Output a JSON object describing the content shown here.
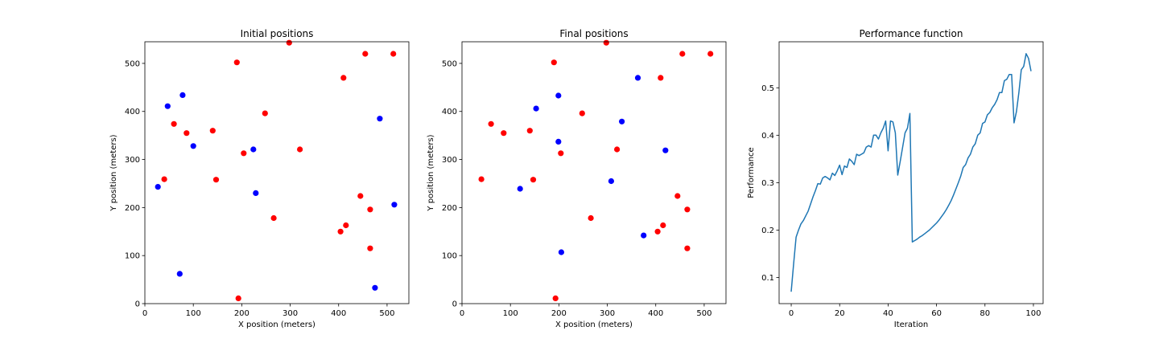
{
  "chart_data": [
    {
      "type": "scatter",
      "title": "Initial positions",
      "xlabel": "X position (meters)",
      "ylabel": "Y position (meters)",
      "xlim": [
        0,
        545
      ],
      "ylim": [
        0,
        545
      ],
      "xticks": [
        0,
        100,
        200,
        300,
        400,
        500
      ],
      "yticks": [
        0,
        100,
        200,
        300,
        400,
        500
      ],
      "series": [
        {
          "color": "#ff0000",
          "points": [
            [
              190,
              502
            ],
            [
              298,
              543
            ],
            [
              455,
              520
            ],
            [
              513,
              520
            ],
            [
              410,
              470
            ],
            [
              60,
              374
            ],
            [
              86,
              355
            ],
            [
              140,
              360
            ],
            [
              248,
              396
            ],
            [
              204,
              313
            ],
            [
              320,
              321
            ],
            [
              40,
              259
            ],
            [
              147,
              258
            ],
            [
              266,
              178
            ],
            [
              445,
              224
            ],
            [
              465,
              196
            ],
            [
              404,
              150
            ],
            [
              415,
              163
            ],
            [
              465,
              115
            ],
            [
              193,
              11
            ]
          ]
        },
        {
          "color": "#0000ff",
          "points": [
            [
              47,
              411
            ],
            [
              78,
              434
            ],
            [
              100,
              328
            ],
            [
              27,
              243
            ],
            [
              224,
              321
            ],
            [
              229,
              230
            ],
            [
              485,
              385
            ],
            [
              515,
              206
            ],
            [
              72,
              62
            ],
            [
              475,
              33
            ]
          ]
        }
      ]
    },
    {
      "type": "scatter",
      "title": "Final positions",
      "xlabel": "X position (meters)",
      "ylabel": "Y position (meters)",
      "xlim": [
        0,
        545
      ],
      "ylim": [
        0,
        545
      ],
      "xticks": [
        0,
        100,
        200,
        300,
        400,
        500
      ],
      "yticks": [
        0,
        100,
        200,
        300,
        400,
        500
      ],
      "series": [
        {
          "color": "#ff0000",
          "points": [
            [
              190,
              502
            ],
            [
              298,
              543
            ],
            [
              455,
              520
            ],
            [
              513,
              520
            ],
            [
              410,
              470
            ],
            [
              60,
              374
            ],
            [
              86,
              355
            ],
            [
              140,
              360
            ],
            [
              248,
              396
            ],
            [
              204,
              313
            ],
            [
              320,
              321
            ],
            [
              40,
              259
            ],
            [
              147,
              258
            ],
            [
              266,
              178
            ],
            [
              445,
              224
            ],
            [
              465,
              196
            ],
            [
              404,
              150
            ],
            [
              415,
              163
            ],
            [
              465,
              115
            ],
            [
              193,
              11
            ]
          ]
        },
        {
          "color": "#0000ff",
          "points": [
            [
              153,
              406
            ],
            [
              199,
              433
            ],
            [
              363,
              470
            ],
            [
              330,
              379
            ],
            [
              199,
              337
            ],
            [
              420,
              319
            ],
            [
              120,
              239
            ],
            [
              308,
              255
            ],
            [
              375,
              142
            ],
            [
              205,
              107
            ]
          ]
        }
      ]
    },
    {
      "type": "line",
      "title": "Performance function",
      "xlabel": "Iteration",
      "ylabel": "Performance",
      "xlim": [
        -5,
        104
      ],
      "ylim": [
        0.045,
        0.597
      ],
      "xticks": [
        0,
        20,
        40,
        60,
        80,
        100
      ],
      "yticks": [
        0.1,
        0.2,
        0.3,
        0.4,
        0.5
      ],
      "ytick_labels": [
        "0.1",
        "0.2",
        "0.3",
        "0.4",
        "0.5"
      ],
      "series": [
        {
          "color": "#1f77b4",
          "x": [
            0,
            1,
            2,
            3,
            4,
            5,
            6,
            7,
            8,
            9,
            10,
            11,
            12,
            13,
            14,
            15,
            16,
            17,
            18,
            19,
            20,
            21,
            22,
            23,
            24,
            25,
            26,
            27,
            28,
            29,
            30,
            31,
            32,
            33,
            34,
            35,
            36,
            37,
            38,
            39,
            40,
            41,
            42,
            43,
            44,
            45,
            46,
            47,
            48,
            49,
            50,
            51,
            52,
            53,
            54,
            55,
            56,
            57,
            58,
            59,
            60,
            61,
            62,
            63,
            64,
            65,
            66,
            67,
            68,
            69,
            70,
            71,
            72,
            73,
            74,
            75,
            76,
            77,
            78,
            79,
            80,
            81,
            82,
            83,
            84,
            85,
            86,
            87,
            88,
            89,
            90,
            91,
            92,
            93,
            94,
            95,
            96,
            97,
            98,
            99
          ],
          "values": [
            0.07,
            0.13,
            0.185,
            0.2,
            0.213,
            0.22,
            0.23,
            0.24,
            0.255,
            0.27,
            0.283,
            0.298,
            0.297,
            0.31,
            0.313,
            0.31,
            0.306,
            0.32,
            0.315,
            0.325,
            0.337,
            0.317,
            0.335,
            0.332,
            0.35,
            0.345,
            0.338,
            0.36,
            0.357,
            0.36,
            0.363,
            0.375,
            0.378,
            0.375,
            0.4,
            0.4,
            0.392,
            0.405,
            0.415,
            0.43,
            0.367,
            0.43,
            0.428,
            0.405,
            0.316,
            0.345,
            0.375,
            0.405,
            0.415,
            0.446,
            0.175,
            0.178,
            0.181,
            0.185,
            0.188,
            0.192,
            0.196,
            0.2,
            0.205,
            0.21,
            0.215,
            0.221,
            0.228,
            0.235,
            0.243,
            0.252,
            0.262,
            0.274,
            0.287,
            0.3,
            0.314,
            0.332,
            0.338,
            0.352,
            0.36,
            0.375,
            0.382,
            0.4,
            0.405,
            0.425,
            0.428,
            0.443,
            0.448,
            0.458,
            0.465,
            0.475,
            0.49,
            0.49,
            0.515,
            0.518,
            0.528,
            0.528,
            0.426,
            0.45,
            0.49,
            0.538,
            0.545,
            0.572,
            0.562,
            0.535
          ]
        }
      ]
    }
  ]
}
